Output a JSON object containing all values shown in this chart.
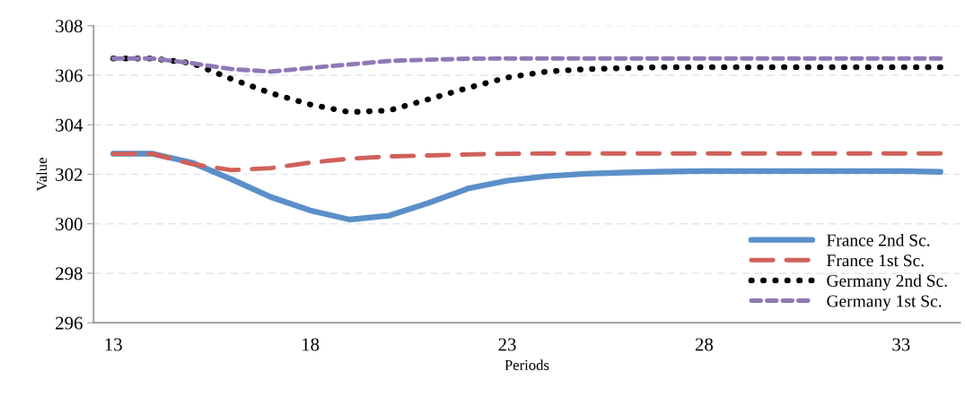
{
  "chart_data": {
    "type": "line",
    "xlabel": "Periods",
    "ylabel": "Value",
    "x": [
      13,
      14,
      15,
      16,
      17,
      18,
      19,
      20,
      21,
      22,
      23,
      24,
      25,
      26,
      27,
      28,
      29,
      30,
      31,
      32,
      33,
      34
    ],
    "xlim": [
      12.5,
      34.5
    ],
    "xticks": [
      13,
      18,
      23,
      28,
      33
    ],
    "ylim": [
      296,
      308
    ],
    "yticks": [
      296,
      298,
      300,
      302,
      304,
      306,
      308
    ],
    "grid": "y",
    "legend": "lower right",
    "series": [
      {
        "name": "France 2nd Sc.",
        "color": "#5b8fc9",
        "line_style": "solid",
        "values": [
          302.83,
          302.83,
          302.47,
          301.8,
          301.08,
          300.54,
          300.17,
          300.33,
          300.84,
          301.42,
          301.74,
          301.92,
          302.02,
          302.07,
          302.11,
          302.13,
          302.13,
          302.13,
          302.13,
          302.13,
          302.13,
          302.1
        ]
      },
      {
        "name": "France 1st Sc.",
        "color": "#d0605a",
        "line_style": "dashed",
        "values": [
          302.83,
          302.83,
          302.41,
          302.17,
          302.25,
          302.47,
          302.63,
          302.72,
          302.76,
          302.8,
          302.83,
          302.84,
          302.84,
          302.84,
          302.84,
          302.84,
          302.84,
          302.84,
          302.84,
          302.84,
          302.84,
          302.84
        ]
      },
      {
        "name": "Germany 2nd Sc.",
        "color": "#000000",
        "line_style": "dotted",
        "values": [
          306.68,
          306.68,
          306.49,
          305.85,
          305.28,
          304.82,
          304.51,
          304.58,
          305.03,
          305.49,
          305.91,
          306.15,
          306.25,
          306.29,
          306.33,
          306.33,
          306.33,
          306.33,
          306.33,
          306.33,
          306.33,
          306.33
        ]
      },
      {
        "name": "Germany 1st Sc.",
        "color": "#8e79b5",
        "line_style": "dashed",
        "values": [
          306.68,
          306.68,
          306.49,
          306.25,
          306.15,
          306.3,
          306.44,
          306.58,
          306.63,
          306.67,
          306.68,
          306.68,
          306.68,
          306.68,
          306.68,
          306.68,
          306.68,
          306.68,
          306.68,
          306.68,
          306.68,
          306.68
        ]
      }
    ]
  }
}
